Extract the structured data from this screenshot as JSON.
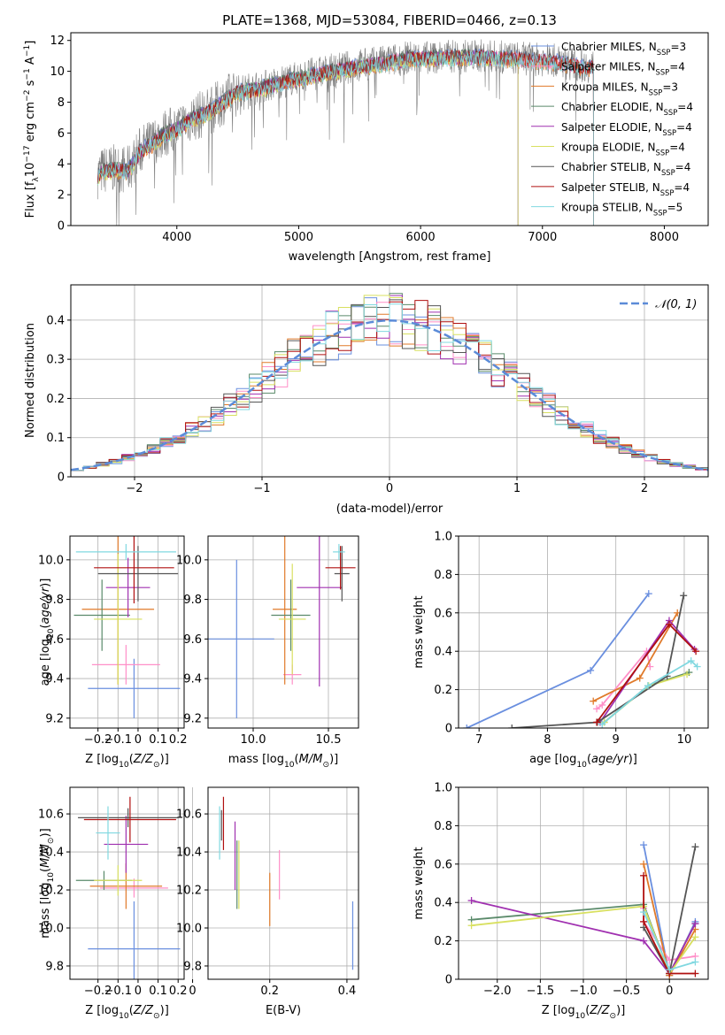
{
  "figure_title": "PLATE=1368, MJD=53084, FIBERID=0466, z=0.13",
  "colors": {
    "Chabrier MILES": "#6a8fdf",
    "Salpeter MILES": "#ff8fc8",
    "Kroupa MILES": "#e07a2a",
    "Chabrier ELODIE": "#5a8a6a",
    "Salpeter ELODIE": "#a030b0",
    "Kroupa ELODIE": "#d8e060",
    "Chabrier STELIB": "#555555",
    "Salpeter STELIB": "#b01010",
    "Kroupa STELIB": "#80d8e0",
    "Observed": "#808080",
    "Gaussian": "#5b8bd8"
  },
  "chart_data": [
    {
      "type": "line",
      "id": "spectrum",
      "title": "PLATE=1368, MJD=53084, FIBERID=0466, z=0.13",
      "xlabel": "wavelength [Angstrom, rest frame]",
      "ylabel": "Flux [f_λ 10^-17 erg cm^-2 s^-1 A^-1]",
      "xlim": [
        3130,
        8360
      ],
      "ylim": [
        0,
        12.5
      ],
      "xticks": [
        4000,
        5000,
        6000,
        7000,
        8000
      ],
      "yticks": [
        0,
        2,
        4,
        6,
        8,
        10,
        12
      ],
      "grid": false,
      "legend_position": "right",
      "continuum": {
        "x": [
          3350,
          3400,
          3500,
          3600,
          3700,
          3800,
          3900,
          4000,
          4100,
          4200,
          4300,
          4400,
          4500,
          4700,
          4900,
          5100,
          5300,
          5500,
          5700,
          5900,
          6100,
          6300,
          6500,
          6700,
          6900,
          7100,
          7300,
          7420
        ],
        "y": [
          3.3,
          3.6,
          3.7,
          3.6,
          4.9,
          5.4,
          6.0,
          6.3,
          6.9,
          7.2,
          7.6,
          8.2,
          8.7,
          9.0,
          9.4,
          9.8,
          10.1,
          10.4,
          10.6,
          10.9,
          10.9,
          11.0,
          11.0,
          10.9,
          10.8,
          10.7,
          10.4,
          10.3
        ]
      },
      "series": [
        {
          "name": "Chabrier MILES, N_SSP=3",
          "start": 3350,
          "end": 7420
        },
        {
          "name": "Salpeter MILES, N_SSP=4",
          "start": 3350,
          "end": 7420
        },
        {
          "name": "Kroupa MILES, N_SSP=3",
          "start": 3350,
          "end": 7420
        },
        {
          "name": "Chabrier ELODIE, N_SSP=4",
          "start": 3350,
          "end": 6800
        },
        {
          "name": "Salpeter ELODIE, N_SSP=4",
          "start": 3350,
          "end": 6800
        },
        {
          "name": "Kroupa ELODIE, N_SSP=4",
          "start": 3350,
          "end": 6800
        },
        {
          "name": "Chabrier STELIB, N_SSP=4",
          "start": 3350,
          "end": 7420
        },
        {
          "name": "Salpeter STELIB, N_SSP=4",
          "start": 3350,
          "end": 7420
        },
        {
          "name": "Kroupa STELIB, N_SSP=5",
          "start": 3350,
          "end": 7420
        }
      ]
    },
    {
      "type": "histogram",
      "id": "residuals",
      "xlabel": "(data-model)/error",
      "ylabel": "Normed distribution",
      "xlim": [
        -2.5,
        2.5
      ],
      "ylim": [
        0,
        0.49
      ],
      "xticks": [
        -2,
        -1,
        0,
        1,
        2
      ],
      "yticks": [
        0.0,
        0.1,
        0.2,
        0.3,
        0.4
      ],
      "grid": true,
      "legend": "𝒩(0, 1)",
      "legend_position": "top-right",
      "bin_width": 0.1,
      "x_start": -2.5,
      "mean_profile": [
        0.021,
        0.025,
        0.03,
        0.034,
        0.038,
        0.042,
        0.047,
        0.053,
        0.06,
        0.068,
        0.077,
        0.087,
        0.098,
        0.11,
        0.124,
        0.14,
        0.155,
        0.168,
        0.188,
        0.215,
        0.245,
        0.272,
        0.29,
        0.318,
        0.35,
        0.378,
        0.395,
        0.405,
        0.41,
        0.413,
        0.405,
        0.398,
        0.388,
        0.375,
        0.36,
        0.345,
        0.33,
        0.31,
        0.29,
        0.265,
        0.24,
        0.22,
        0.2,
        0.18,
        0.165,
        0.15,
        0.132,
        0.118,
        0.105,
        0.092,
        0.082,
        0.072,
        0.063,
        0.055,
        0.048,
        0.042,
        0.036,
        0.031,
        0.027,
        0.023,
        0.02,
        0.018,
        0.016,
        0.014,
        0.012,
        0.01,
        0.009,
        0.008,
        0.007,
        0.006,
        0.005,
        0.004,
        0.004,
        0.003,
        0.003,
        0.002,
        0.002,
        0.002,
        0.002,
        0.001,
        0.001
      ]
    },
    {
      "type": "errorbar",
      "id": "age_vs_Z",
      "xlabel": "Z [log10(Z/Z⊙)]",
      "ylabel": "age [log10(age/yr)]",
      "xlim": [
        -0.34,
        0.23
      ],
      "ylim": [
        9.15,
        10.12
      ],
      "xticks": [
        -0.2,
        -0.1,
        0.0,
        0.1,
        0.2
      ],
      "yticks": [
        9.2,
        9.4,
        9.6,
        9.8,
        10.0
      ],
      "grid": true,
      "points": [
        {
          "model": "Chabrier MILES",
          "x": -0.02,
          "xerr": 0.23,
          "y": 9.35,
          "yerr": 0.15
        },
        {
          "model": "Salpeter MILES",
          "x": -0.06,
          "xerr": 0.17,
          "y": 9.47,
          "yerr": 0.1
        },
        {
          "model": "Kroupa MILES",
          "x": -0.1,
          "xerr": 0.18,
          "y": 9.75,
          "yerr": 0.38
        },
        {
          "model": "Chabrier ELODIE",
          "x": -0.18,
          "xerr": 0.14,
          "y": 9.72,
          "yerr": 0.18
        },
        {
          "model": "Salpeter ELODIE",
          "x": -0.05,
          "xerr": 0.11,
          "y": 9.86,
          "yerr": 0.15
        },
        {
          "model": "Kroupa ELODIE",
          "x": -0.1,
          "xerr": 0.12,
          "y": 9.7,
          "yerr": 0.33
        },
        {
          "model": "Chabrier STELIB",
          "x": 0.0,
          "xerr": 0.2,
          "y": 9.93,
          "yerr": 0.14
        },
        {
          "model": "Salpeter STELIB",
          "x": -0.02,
          "xerr": 0.2,
          "y": 9.96,
          "yerr": 0.18
        },
        {
          "model": "Kroupa STELIB",
          "x": -0.06,
          "xerr": 0.25,
          "y": 10.04,
          "yerr": 0.04
        }
      ]
    },
    {
      "type": "errorbar",
      "id": "age_vs_mass",
      "xlabel": "mass [log10(M/M⊙)]",
      "ylabel": "",
      "xlim": [
        9.7,
        10.7
      ],
      "ylim": [
        9.15,
        10.12
      ],
      "xticks": [
        10.0,
        10.5
      ],
      "yticks": [
        9.2,
        9.4,
        9.6,
        9.8,
        10.0
      ],
      "grid": true,
      "points": [
        {
          "model": "Chabrier MILES",
          "x": 9.89,
          "xerr": 0.25,
          "y": 9.6,
          "yerr": 0.4
        },
        {
          "model": "Salpeter MILES",
          "x": 10.26,
          "xerr": 0.06,
          "y": 9.42,
          "yerr": 0.05
        },
        {
          "model": "Kroupa MILES",
          "x": 10.21,
          "xerr": 0.08,
          "y": 9.75,
          "yerr": 0.38
        },
        {
          "model": "Chabrier ELODIE",
          "x": 10.25,
          "xerr": 0.13,
          "y": 9.72,
          "yerr": 0.18
        },
        {
          "model": "Salpeter ELODIE",
          "x": 10.44,
          "xerr": 0.15,
          "y": 9.86,
          "yerr": 0.5
        },
        {
          "model": "Kroupa ELODIE",
          "x": 10.26,
          "xerr": 0.09,
          "y": 9.7,
          "yerr": 0.28
        },
        {
          "model": "Chabrier STELIB",
          "x": 10.59,
          "xerr": 0.05,
          "y": 9.93,
          "yerr": 0.14
        },
        {
          "model": "Salpeter STELIB",
          "x": 10.58,
          "xerr": 0.1,
          "y": 9.96,
          "yerr": 0.11
        },
        {
          "model": "Kroupa STELIB",
          "x": 10.57,
          "xerr": 0.04,
          "y": 10.04,
          "yerr": 0.04
        }
      ]
    },
    {
      "type": "line",
      "id": "weight_vs_age",
      "xlabel": "age [log10(age/yr)]",
      "ylabel": "mass weight",
      "xlim": [
        6.7,
        10.35
      ],
      "ylim": [
        0.0,
        1.0
      ],
      "xticks": [
        7,
        8,
        9,
        10
      ],
      "yticks": [
        0.0,
        0.2,
        0.4,
        0.6,
        0.8,
        1.0
      ],
      "grid": true,
      "series": [
        {
          "model": "Chabrier MILES",
          "x": [
            6.82,
            8.63,
            9.48
          ],
          "y": [
            0.0,
            0.3,
            0.7
          ]
        },
        {
          "model": "Salpeter MILES",
          "x": [
            8.72,
            8.8,
            9.45,
            9.5
          ],
          "y": [
            0.1,
            0.12,
            0.4,
            0.32
          ]
        },
        {
          "model": "Kroupa MILES",
          "x": [
            8.67,
            9.35,
            9.9
          ],
          "y": [
            0.14,
            0.26,
            0.6
          ]
        },
        {
          "model": "Chabrier ELODIE",
          "x": [
            8.83,
            9.47,
            10.07
          ],
          "y": [
            0.03,
            0.22,
            0.29
          ]
        },
        {
          "model": "Salpeter ELODIE",
          "x": [
            8.77,
            9.78,
            10.15
          ],
          "y": [
            0.03,
            0.56,
            0.41
          ]
        },
        {
          "model": "Kroupa ELODIE",
          "x": [
            8.83,
            9.48,
            10.04
          ],
          "y": [
            0.03,
            0.22,
            0.28
          ]
        },
        {
          "model": "Chabrier STELIB",
          "x": [
            7.48,
            8.73,
            9.75,
            9.99
          ],
          "y": [
            0.0,
            0.03,
            0.27,
            0.69
          ]
        },
        {
          "model": "Salpeter STELIB",
          "x": [
            8.72,
            9.78,
            10.17
          ],
          "y": [
            0.03,
            0.54,
            0.4
          ]
        },
        {
          "model": "Kroupa STELIB",
          "x": [
            8.8,
            9.47,
            10.1,
            10.19
          ],
          "y": [
            0.02,
            0.22,
            0.35,
            0.32
          ]
        }
      ]
    },
    {
      "type": "errorbar",
      "id": "mass_vs_Z",
      "xlabel": "Z [log10(Z/Z⊙)]",
      "ylabel": "mass [log10(M/M⊙)]",
      "xlim": [
        -0.34,
        0.23
      ],
      "ylim": [
        9.73,
        10.74
      ],
      "xticks": [
        -0.2,
        -0.1,
        0.0,
        0.1,
        0.2
      ],
      "yticks": [
        9.8,
        10.0,
        10.2,
        10.4,
        10.6
      ],
      "grid": true,
      "points": [
        {
          "model": "Chabrier MILES",
          "x": -0.02,
          "xerr": 0.23,
          "y": 9.89,
          "yerr": 0.25
        },
        {
          "model": "Salpeter MILES",
          "x": -0.02,
          "xerr": 0.17,
          "y": 10.21,
          "yerr": 0.05
        },
        {
          "model": "Kroupa MILES",
          "x": -0.06,
          "xerr": 0.18,
          "y": 10.22,
          "yerr": 0.12
        },
        {
          "model": "Chabrier ELODIE",
          "x": -0.17,
          "xerr": 0.14,
          "y": 10.25,
          "yerr": 0.05
        },
        {
          "model": "Salpeter ELODIE",
          "x": -0.06,
          "xerr": 0.11,
          "y": 10.44,
          "yerr": 0.15
        },
        {
          "model": "Kroupa ELODIE",
          "x": -0.1,
          "xerr": 0.12,
          "y": 10.25,
          "yerr": 0.08
        },
        {
          "model": "Chabrier STELIB",
          "x": -0.05,
          "xerr": 0.25,
          "y": 10.58,
          "yerr": 0.05
        },
        {
          "model": "Salpeter STELIB",
          "x": -0.04,
          "xerr": 0.23,
          "y": 10.57,
          "yerr": 0.12
        },
        {
          "model": "Kroupa STELIB",
          "x": -0.15,
          "xerr": 0.06,
          "y": 10.5,
          "yerr": 0.14
        }
      ]
    },
    {
      "type": "errorbar",
      "id": "mass_vs_EBV",
      "xlabel": "E(B-V)",
      "ylabel": "",
      "xlim": [
        0.04,
        0.43
      ],
      "ylim": [
        9.73,
        10.74
      ],
      "xticks": [
        0.0,
        0.2,
        0.4
      ],
      "yticks": [
        9.8,
        10.0,
        10.2,
        10.4,
        10.6
      ],
      "grid": true,
      "points": [
        {
          "model": "Chabrier MILES",
          "x": 0.415,
          "xerr": 0,
          "y": 9.96,
          "yerr": 0.18
        },
        {
          "model": "Salpeter MILES",
          "x": 0.225,
          "xerr": 0,
          "y": 10.28,
          "yerr": 0.13
        },
        {
          "model": "Kroupa MILES",
          "x": 0.2,
          "xerr": 0,
          "y": 10.15,
          "yerr": 0.14
        },
        {
          "model": "Chabrier ELODIE",
          "x": 0.115,
          "xerr": 0,
          "y": 10.28,
          "yerr": 0.18
        },
        {
          "model": "Salpeter ELODIE",
          "x": 0.11,
          "xerr": 0,
          "y": 10.38,
          "yerr": 0.18
        },
        {
          "model": "Kroupa ELODIE",
          "x": 0.12,
          "xerr": 0,
          "y": 10.28,
          "yerr": 0.18
        },
        {
          "model": "Chabrier STELIB",
          "x": 0.075,
          "xerr": 0,
          "y": 10.54,
          "yerr": 0.08
        },
        {
          "model": "Salpeter STELIB",
          "x": 0.08,
          "xerr": 0,
          "y": 10.55,
          "yerr": 0.14
        },
        {
          "model": "Kroupa STELIB",
          "x": 0.07,
          "xerr": 0,
          "y": 10.5,
          "yerr": 0.14
        }
      ]
    },
    {
      "type": "line",
      "id": "weight_vs_Z",
      "xlabel": "Z [log10(Z/Z⊙)]",
      "ylabel": "mass weight",
      "xlim": [
        -2.45,
        0.45
      ],
      "ylim": [
        0.0,
        1.0
      ],
      "xticks": [
        -2.0,
        -1.5,
        -1.0,
        -0.5,
        0.0
      ],
      "yticks": [
        0.0,
        0.2,
        0.4,
        0.6,
        0.8,
        1.0
      ],
      "grid": true,
      "series": [
        {
          "model": "Chabrier MILES",
          "x": [
            -0.3,
            0.0,
            0.3
          ],
          "y": [
            0.7,
            0.02,
            0.3
          ]
        },
        {
          "model": "Salpeter MILES",
          "x": [
            -0.3,
            -0.3,
            0.0,
            0.3
          ],
          "y": [
            0.37,
            0.3,
            0.1,
            0.12
          ]
        },
        {
          "model": "Kroupa MILES",
          "x": [
            -0.3,
            0.0,
            0.3
          ],
          "y": [
            0.6,
            0.02,
            0.26
          ]
        },
        {
          "model": "Chabrier ELODIE",
          "x": [
            -2.3,
            -0.3,
            0.0,
            0.3
          ],
          "y": [
            0.31,
            0.39,
            0.03,
            0.29
          ]
        },
        {
          "model": "Salpeter ELODIE",
          "x": [
            -2.3,
            -0.3,
            0.0,
            0.3
          ],
          "y": [
            0.41,
            0.2,
            0.03,
            0.29
          ]
        },
        {
          "model": "Kroupa ELODIE",
          "x": [
            -2.3,
            -0.3,
            0.0,
            0.3
          ],
          "y": [
            0.28,
            0.38,
            0.03,
            0.22
          ]
        },
        {
          "model": "Chabrier STELIB",
          "x": [
            -0.3,
            0.0,
            0.3
          ],
          "y": [
            0.27,
            0.03,
            0.69
          ]
        },
        {
          "model": "Salpeter STELIB",
          "x": [
            -0.3,
            -0.3,
            0.0,
            0.3
          ],
          "y": [
            0.54,
            0.3,
            0.03,
            0.03
          ]
        },
        {
          "model": "Kroupa STELIB",
          "x": [
            -0.3,
            0.0,
            0.3
          ],
          "y": [
            0.35,
            0.05,
            0.09
          ]
        }
      ]
    }
  ]
}
